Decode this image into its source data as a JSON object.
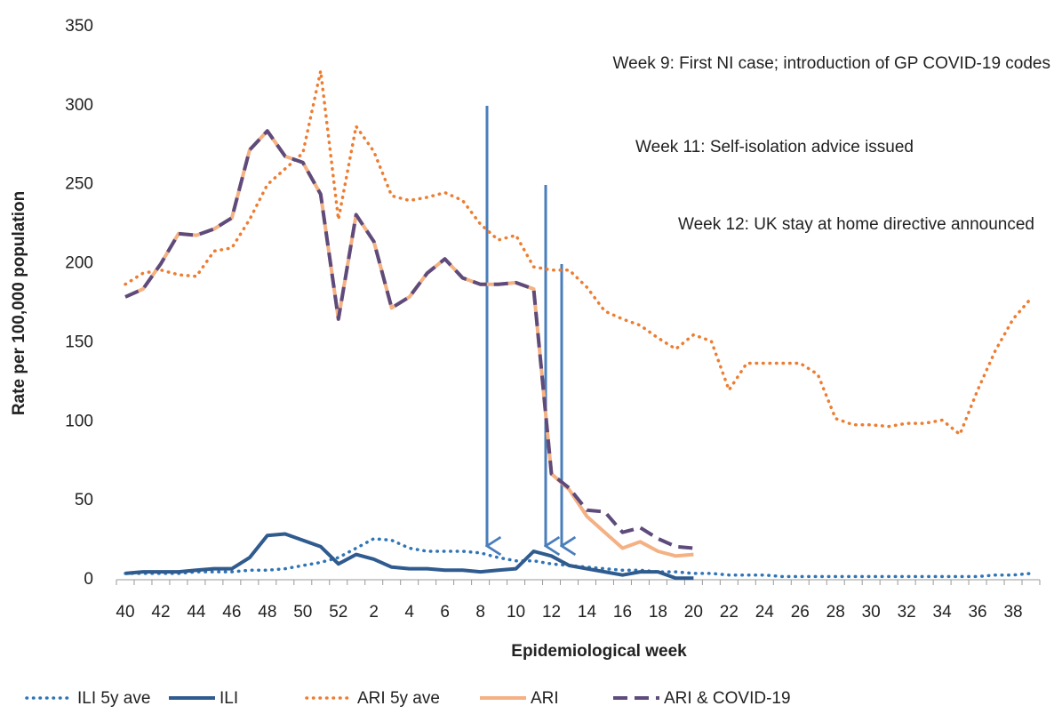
{
  "chart_data": {
    "type": "line",
    "x_label": "Epidemiological week",
    "y_label": "Rate per 100,000 population",
    "categories": [
      "40",
      null,
      "42",
      null,
      "44",
      null,
      "46",
      null,
      "48",
      null,
      "50",
      null,
      "52",
      null,
      "2",
      null,
      "4",
      null,
      "6",
      null,
      "8",
      null,
      "10",
      null,
      "12",
      null,
      "14",
      null,
      "16",
      null,
      "18",
      null,
      "20",
      null,
      "22",
      null,
      "24",
      null,
      "26",
      null,
      "28",
      null,
      "30",
      null,
      "32",
      null,
      "34",
      null,
      "36",
      null,
      "38",
      null
    ],
    "ylim": [
      0,
      350
    ],
    "yticks": [
      0,
      50,
      100,
      150,
      200,
      250,
      300,
      350
    ],
    "legend": "bottom",
    "annotations": [
      "Week 9: First NI case; introduction of GP COVID-19 codes",
      "Week 11: Self-isolation advice issued",
      "Week 12: UK stay at home directive announced"
    ],
    "series": [
      {
        "name": "ILI 5y ave",
        "color": "#2e75b6",
        "style": "dotted",
        "values": [
          4,
          4,
          4,
          4,
          5,
          5,
          5,
          6,
          6,
          7,
          9,
          11,
          14,
          20,
          26,
          25,
          20,
          18,
          18,
          18,
          17,
          14,
          12,
          12,
          10,
          9,
          8,
          7,
          6,
          6,
          5,
          5,
          4,
          4,
          3,
          3,
          3,
          2,
          2,
          2,
          2,
          2,
          2,
          2,
          2,
          2,
          2,
          2,
          2,
          3,
          3,
          4
        ]
      },
      {
        "name": "ILI",
        "color": "#2f5b8f",
        "style": "solid",
        "values": [
          4,
          5,
          5,
          5,
          6,
          7,
          7,
          14,
          28,
          29,
          25,
          21,
          10,
          16,
          13,
          8,
          7,
          7,
          6,
          6,
          5,
          6,
          7,
          18,
          15,
          9,
          7,
          5,
          3,
          5,
          5,
          1,
          1,
          null,
          null,
          null,
          null,
          null,
          null,
          null,
          null,
          null,
          null,
          null,
          null,
          null,
          null,
          null,
          null,
          null,
          null,
          null
        ]
      },
      {
        "name": "ARI 5y ave",
        "color": "#ed7d31",
        "style": "dotted",
        "values": [
          187,
          194,
          196,
          193,
          192,
          208,
          210,
          228,
          250,
          260,
          270,
          322,
          228,
          287,
          271,
          243,
          240,
          242,
          245,
          240,
          225,
          215,
          218,
          198,
          196,
          196,
          185,
          170,
          165,
          161,
          153,
          146,
          155,
          151,
          120,
          137,
          137,
          137,
          137,
          130,
          102,
          98,
          98,
          97,
          99,
          99,
          101,
          92,
          120,
          145,
          165,
          178
        ]
      },
      {
        "name": "ARI",
        "color": "#f4b183",
        "style": "solid",
        "values": [
          179,
          184,
          200,
          219,
          218,
          222,
          229,
          272,
          284,
          268,
          264,
          244,
          165,
          231,
          214,
          172,
          179,
          194,
          203,
          191,
          187,
          187,
          188,
          184,
          67,
          57,
          40,
          30,
          20,
          24,
          18,
          15,
          16,
          null,
          null,
          null,
          null,
          null,
          null,
          null,
          null,
          null,
          null,
          null,
          null,
          null,
          null,
          null,
          null,
          null,
          null,
          null
        ]
      },
      {
        "name": "ARI & COVID-19",
        "color": "#5e4b7c",
        "style": "dashed",
        "values": [
          179,
          184,
          200,
          219,
          218,
          222,
          229,
          272,
          284,
          268,
          264,
          244,
          165,
          231,
          214,
          172,
          179,
          194,
          203,
          191,
          187,
          187,
          188,
          184,
          67,
          58,
          44,
          43,
          30,
          33,
          26,
          21,
          20,
          null,
          null,
          null,
          null,
          null,
          null,
          null,
          null,
          null,
          null,
          null,
          null,
          null,
          null,
          null,
          null,
          null,
          null,
          null
        ]
      }
    ]
  }
}
